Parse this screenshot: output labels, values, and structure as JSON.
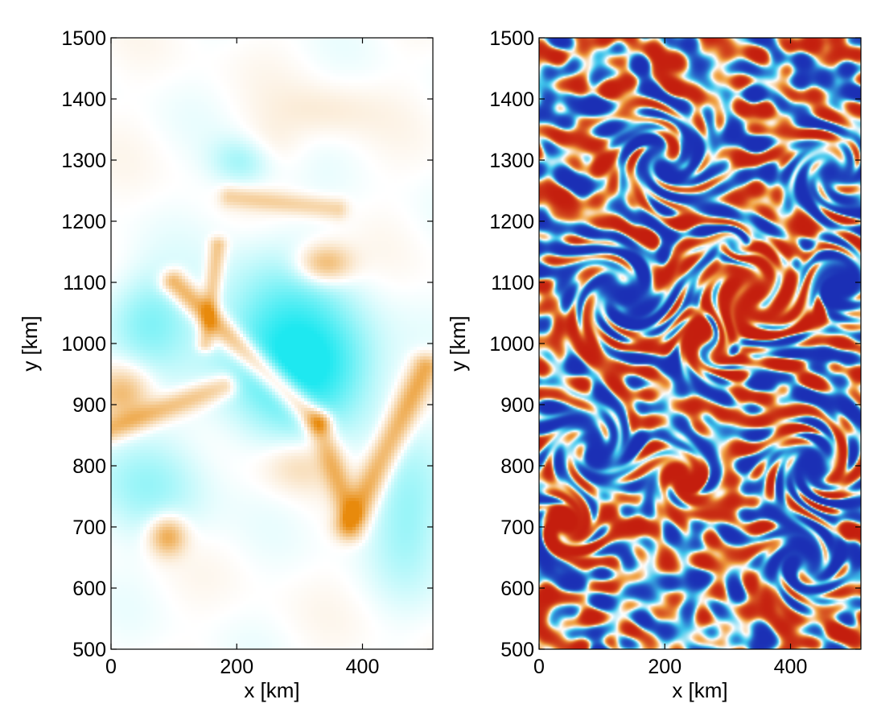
{
  "chart_data": [
    {
      "type": "heatmap",
      "field": "smooth",
      "xlabel": "x [km]",
      "ylabel": "y [km]",
      "xlim": [
        0,
        512
      ],
      "ylim": [
        500,
        1500
      ],
      "xticks": [
        0,
        200,
        400
      ],
      "yticks": [
        500,
        600,
        700,
        800,
        900,
        1000,
        1100,
        1200,
        1300,
        1400,
        1500
      ],
      "xtick_labels": [
        "0",
        "200",
        "400"
      ],
      "ytick_labels": [
        "500",
        "600",
        "700",
        "800",
        "900",
        "1000",
        "1100",
        "1200",
        "1300",
        "1400",
        "1500"
      ],
      "grid": false,
      "colormap": {
        "negative": "#1ee8f0",
        "zero": "#ffffff",
        "positive": "#e88a0c"
      },
      "features": [
        {
          "kind": "cyan-region",
          "x": 260,
          "y": 1000,
          "sx": 70,
          "sy": 90,
          "amp": -0.55
        },
        {
          "kind": "cyan-region",
          "x": 350,
          "y": 960,
          "sx": 60,
          "sy": 70,
          "amp": -0.45
        },
        {
          "kind": "cyan-region",
          "x": 60,
          "y": 1040,
          "sx": 50,
          "sy": 55,
          "amp": -0.35
        },
        {
          "kind": "cyan-region",
          "x": 210,
          "y": 1300,
          "sx": 35,
          "sy": 30,
          "amp": -0.35
        },
        {
          "kind": "cyan-region",
          "x": 60,
          "y": 770,
          "sx": 70,
          "sy": 60,
          "amp": -0.25
        },
        {
          "kind": "cyan-region",
          "x": 470,
          "y": 720,
          "sx": 45,
          "sy": 80,
          "amp": -0.3
        },
        {
          "kind": "orange-blob",
          "x": 340,
          "y": 1130,
          "sx": 30,
          "sy": 22,
          "amp": 0.55
        },
        {
          "kind": "orange-blob",
          "x": 90,
          "y": 685,
          "sx": 20,
          "sy": 22,
          "amp": 0.6
        },
        {
          "kind": "orange-blob",
          "x": 20,
          "y": 920,
          "sx": 30,
          "sy": 30,
          "amp": 0.45
        },
        {
          "kind": "orange-blob",
          "x": 300,
          "y": 800,
          "sx": 40,
          "sy": 30,
          "amp": 0.25
        },
        {
          "kind": "orange-blob",
          "x": 240,
          "y": 1320,
          "sx": 40,
          "sy": 30,
          "amp": 0.15
        },
        {
          "kind": "orange-blob",
          "x": 340,
          "y": 1380,
          "sx": 60,
          "sy": 30,
          "amp": 0.12
        },
        {
          "kind": "orange-filament",
          "x0": 100,
          "y0": 1100,
          "x1": 330,
          "y1": 870,
          "w": 14,
          "amp": 0.65
        },
        {
          "kind": "orange-filament",
          "x0": 330,
          "y0": 870,
          "x1": 380,
          "y1": 720,
          "w": 14,
          "amp": 0.45
        },
        {
          "kind": "orange-filament",
          "x0": 380,
          "y0": 700,
          "x1": 500,
          "y1": 960,
          "w": 16,
          "amp": 0.6
        },
        {
          "kind": "orange-filament",
          "x0": 0,
          "y0": 860,
          "x1": 180,
          "y1": 930,
          "w": 14,
          "amp": 0.45
        },
        {
          "kind": "orange-filament",
          "x0": 170,
          "y0": 1160,
          "x1": 150,
          "y1": 1000,
          "w": 10,
          "amp": 0.45
        },
        {
          "kind": "orange-filament",
          "x0": 190,
          "y0": 1240,
          "x1": 360,
          "y1": 1220,
          "w": 12,
          "amp": 0.3
        }
      ]
    },
    {
      "type": "heatmap",
      "field": "turbulent",
      "xlabel": "x [km]",
      "ylabel": "y [km]",
      "xlim": [
        0,
        512
      ],
      "ylim": [
        500,
        1500
      ],
      "xticks": [
        0,
        200,
        400
      ],
      "yticks": [
        500,
        600,
        700,
        800,
        900,
        1000,
        1100,
        1200,
        1300,
        1400,
        1500
      ],
      "xtick_labels": [
        "0",
        "200",
        "400"
      ],
      "ytick_labels": [
        "500",
        "600",
        "700",
        "800",
        "900",
        "1000",
        "1100",
        "1200",
        "1300",
        "1400",
        "1500"
      ],
      "grid": false,
      "colormap": {
        "strong_negative": "#1b2fb5",
        "negative": "#3fc6ec",
        "zero": "#ffffff",
        "positive": "#f0a040",
        "strong_positive": "#c41e0e"
      },
      "features": [
        {
          "kind": "vortex",
          "x": 340,
          "y": 1080,
          "r": 55,
          "sign": 1
        },
        {
          "kind": "vortex",
          "x": 130,
          "y": 1080,
          "r": 45,
          "sign": -1
        },
        {
          "kind": "vortex",
          "x": 85,
          "y": 830,
          "r": 35,
          "sign": -1
        },
        {
          "kind": "vortex",
          "x": 270,
          "y": 1000,
          "r": 30,
          "sign": 1
        },
        {
          "kind": "vortex",
          "x": 310,
          "y": 1160,
          "r": 18,
          "sign": -1
        },
        {
          "kind": "vortex",
          "x": 480,
          "y": 1100,
          "r": 35,
          "sign": -1
        },
        {
          "kind": "vortex",
          "x": 440,
          "y": 800,
          "r": 40,
          "sign": -1
        },
        {
          "kind": "vortex",
          "x": 420,
          "y": 640,
          "r": 35,
          "sign": -1
        },
        {
          "kind": "vortex",
          "x": 200,
          "y": 1300,
          "r": 40,
          "sign": -1
        },
        {
          "kind": "vortex",
          "x": 470,
          "y": 1280,
          "r": 40,
          "sign": -1
        },
        {
          "kind": "vortex",
          "x": 230,
          "y": 780,
          "r": 30,
          "sign": 1
        },
        {
          "kind": "vortex",
          "x": 40,
          "y": 700,
          "r": 30,
          "sign": 1
        }
      ]
    }
  ]
}
